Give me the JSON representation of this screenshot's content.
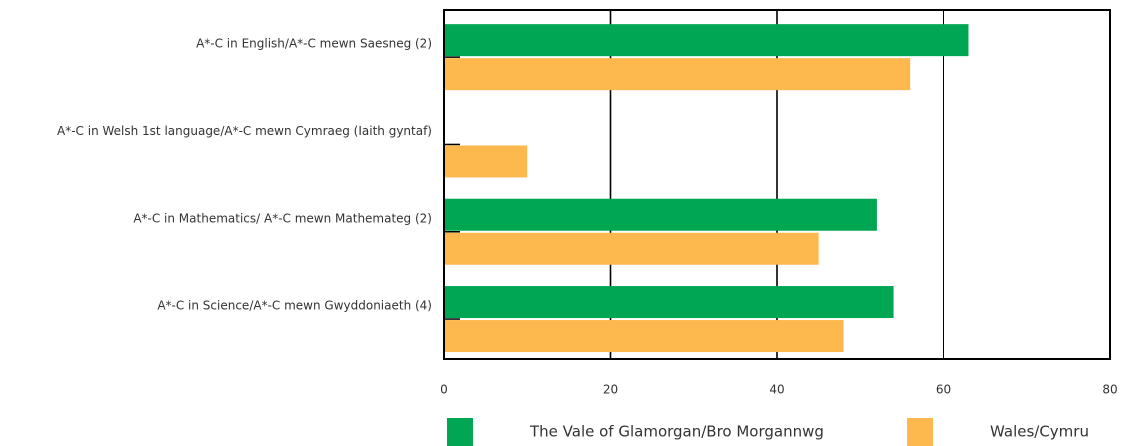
{
  "chart_data": {
    "type": "bar",
    "orientation": "horizontal",
    "categories": [
      "A*-C in English/A*-C mewn Saesneg (2)",
      "A*-C in Welsh 1st language/A*-C mewn Cymraeg (Iaith gyntaf)",
      "A*-C in Mathematics/ A*-C mewn Mathemateg (2)",
      "A*-C in Science/A*-C mewn Gwyddoniaeth (4)"
    ],
    "series": [
      {
        "name": "The Vale of Glamorgan/Bro Morgannwg",
        "color": "#00a651",
        "values": [
          63,
          null,
          52,
          54
        ]
      },
      {
        "name": "Wales/Cymru",
        "color": "#fdb94e",
        "values": [
          56,
          10,
          45,
          48
        ]
      }
    ],
    "xlim": [
      0,
      80
    ],
    "xticks": [
      0,
      20,
      40,
      60,
      80
    ],
    "grid": true,
    "legend": "bottom"
  }
}
